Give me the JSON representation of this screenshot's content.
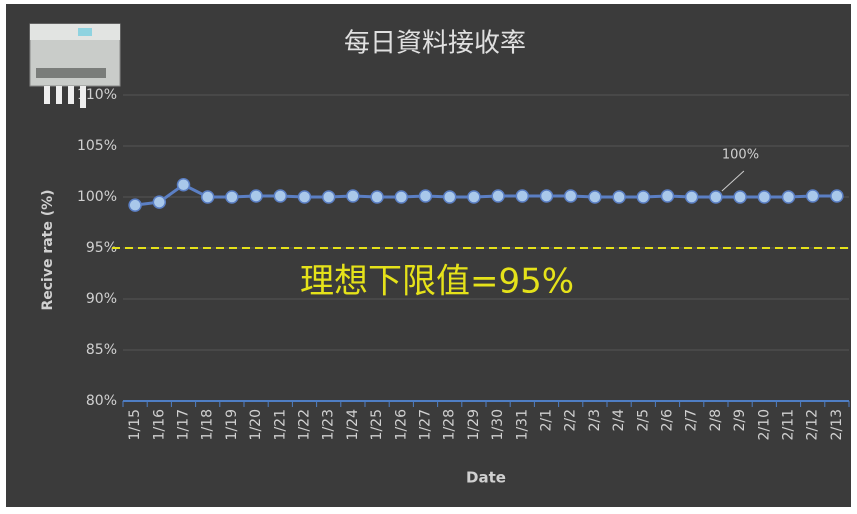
{
  "chart_data": {
    "type": "line",
    "title": "每日資料接收率",
    "x_label": "Date",
    "y_label": "Recive rate (%)",
    "categories": [
      "1/15",
      "1/16",
      "1/17",
      "1/18",
      "1/19",
      "1/20",
      "1/21",
      "1/22",
      "1/23",
      "1/24",
      "1/25",
      "1/26",
      "1/27",
      "1/28",
      "1/29",
      "1/30",
      "1/31",
      "2/1",
      "2/2",
      "2/3",
      "2/4",
      "2/5",
      "2/6",
      "2/7",
      "2/8",
      "2/9",
      "2/10",
      "2/11",
      "2/12",
      "2/13"
    ],
    "series": [
      {
        "color": "#5b7fc4",
        "marker_color": "#a9c8ea",
        "values": [
          99.2,
          99.5,
          101.2,
          100,
          100,
          100.1,
          100.1,
          100,
          100,
          100.1,
          100,
          100,
          100.1,
          100,
          100,
          100.1,
          100.1,
          100.1,
          100.1,
          100,
          100,
          100,
          100.1,
          100,
          100,
          100,
          100,
          100,
          100.1,
          100.1
        ],
        "value_labels": [
          null,
          null,
          null,
          null,
          null,
          null,
          null,
          null,
          null,
          null,
          null,
          null,
          null,
          null,
          null,
          null,
          null,
          null,
          null,
          null,
          null,
          null,
          null,
          null,
          "100%",
          null,
          null,
          null,
          null,
          null
        ]
      }
    ],
    "ylim": [
      80,
      110
    ],
    "yticks": [
      {
        "value": 80,
        "label": "80%"
      },
      {
        "value": 85,
        "label": "85%"
      },
      {
        "value": 90,
        "label": "90%"
      },
      {
        "value": 95,
        "label": "95%"
      },
      {
        "value": 100,
        "label": "100%"
      },
      {
        "value": 105,
        "label": "105%"
      },
      {
        "value": 110,
        "label": "110%"
      }
    ],
    "grid": true,
    "threshold": 95,
    "threshold_color": "#e5e21a",
    "annotation": "理想下限值=95%"
  }
}
